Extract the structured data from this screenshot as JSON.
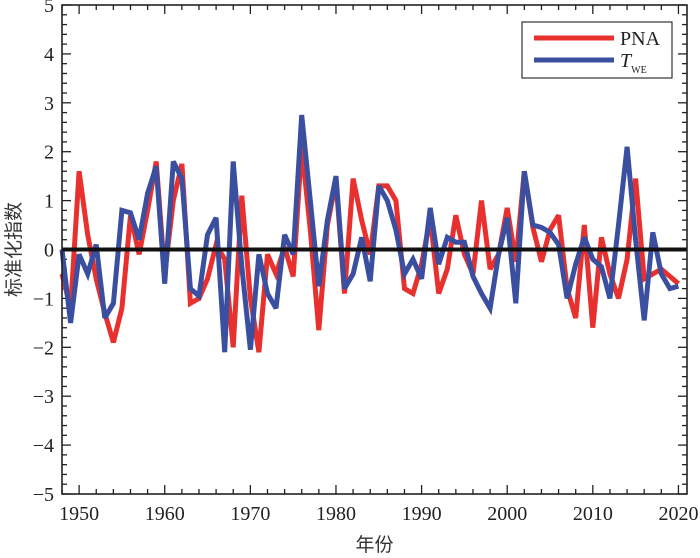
{
  "chart_data": {
    "type": "line",
    "title": "",
    "xlabel": "年份",
    "ylabel": "标准化指数",
    "xlim": [
      1948,
      2021
    ],
    "ylim": [
      -5,
      5
    ],
    "xticks": [
      1950,
      1960,
      1970,
      1980,
      1990,
      2000,
      2010,
      2020
    ],
    "xtick_labels": [
      "1950",
      "1960",
      "1970",
      "1980",
      "1990",
      "2000",
      "2010",
      "2020"
    ],
    "yticks": [
      -5,
      -4,
      -3,
      -2,
      -1,
      0,
      1,
      2,
      3,
      4,
      5
    ],
    "ytick_labels": [
      "−5",
      "−4",
      "−3",
      "−2",
      "−1",
      "0",
      "1",
      "2",
      "3",
      "4",
      "5"
    ],
    "grid": false,
    "reference_line": {
      "y": 0,
      "color": "#111111"
    },
    "legend": {
      "position": "top-right",
      "entries": [
        {
          "label": "PNA",
          "label_sub": "",
          "color": "#e8312f"
        },
        {
          "label": "T",
          "label_sub": "WE",
          "color": "#3a4fa0"
        }
      ]
    },
    "x": [
      1948,
      1949,
      1950,
      1951,
      1952,
      1953,
      1954,
      1955,
      1956,
      1957,
      1958,
      1959,
      1960,
      1961,
      1962,
      1963,
      1964,
      1965,
      1966,
      1967,
      1968,
      1969,
      1970,
      1971,
      1972,
      1973,
      1974,
      1975,
      1976,
      1977,
      1978,
      1979,
      1980,
      1981,
      1982,
      1983,
      1984,
      1985,
      1986,
      1987,
      1988,
      1989,
      1990,
      1991,
      1992,
      1993,
      1994,
      1995,
      1996,
      1997,
      1998,
      1999,
      2000,
      2001,
      2002,
      2003,
      2004,
      2005,
      2006,
      2007,
      2008,
      2009,
      2010,
      2011,
      2012,
      2013,
      2014,
      2015,
      2016,
      2017,
      2018,
      2019,
      2020
    ],
    "series": [
      {
        "name": "PNA",
        "color": "#e8312f",
        "values": [
          -0.5,
          -1.2,
          1.6,
          0.3,
          -0.6,
          -1.3,
          -1.9,
          -1.2,
          0.7,
          -0.1,
          0.8,
          1.8,
          -0.5,
          1.0,
          1.75,
          -1.1,
          -1.0,
          -0.6,
          0.1,
          -0.2,
          -2.0,
          1.1,
          -1.0,
          -2.1,
          -0.1,
          -0.5,
          0.05,
          -0.55,
          2.1,
          0.4,
          -1.65,
          0.5,
          1.4,
          -0.9,
          1.45,
          0.6,
          -0.1,
          1.3,
          1.3,
          1.0,
          -0.8,
          -0.9,
          -0.3,
          0.65,
          -0.9,
          -0.4,
          0.7,
          -0.1,
          -0.5,
          1.0,
          -0.4,
          -0.1,
          0.85,
          -0.25,
          1.6,
          0.45,
          -0.25,
          0.4,
          0.7,
          -0.8,
          -1.4,
          0.5,
          -1.6,
          0.25,
          -0.5,
          -1.0,
          -0.2,
          1.45,
          -0.6,
          -0.5,
          -0.4,
          -0.55,
          -0.7
        ]
      },
      {
        "name": "T_WE",
        "color": "#3a4fa0",
        "values": [
          0.0,
          -1.5,
          -0.1,
          -0.5,
          0.1,
          -1.4,
          -1.1,
          0.8,
          0.75,
          0.2,
          1.15,
          1.7,
          -0.7,
          1.8,
          1.45,
          -0.8,
          -0.95,
          0.3,
          0.65,
          -2.1,
          1.8,
          -0.35,
          -2.05,
          -0.1,
          -0.9,
          -1.2,
          0.3,
          -0.1,
          2.75,
          1.0,
          -0.75,
          0.6,
          1.5,
          -0.8,
          -0.5,
          0.25,
          -0.65,
          1.3,
          1.0,
          0.4,
          -0.5,
          -0.2,
          -0.6,
          0.85,
          -0.3,
          0.25,
          0.15,
          0.15,
          -0.55,
          -0.9,
          -1.2,
          -0.1,
          0.65,
          -1.1,
          1.6,
          0.5,
          0.45,
          0.35,
          0.1,
          -1.0,
          -0.3,
          0.25,
          -0.2,
          -0.35,
          -1.0,
          0.5,
          2.1,
          0.2,
          -1.45,
          0.35,
          -0.5,
          -0.8,
          -0.75
        ]
      }
    ]
  }
}
